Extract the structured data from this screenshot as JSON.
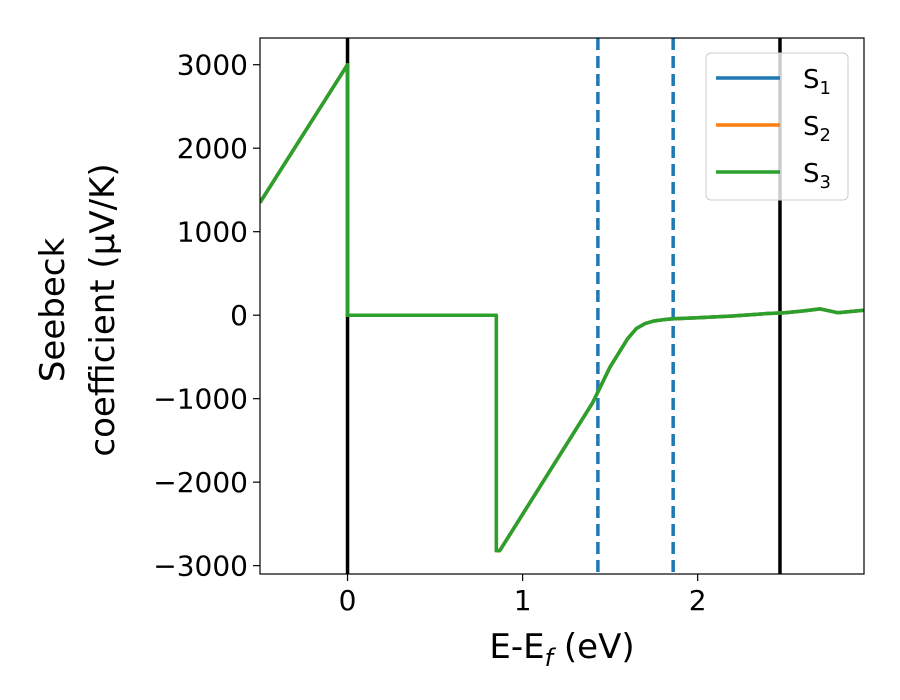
{
  "chart_data": {
    "type": "line",
    "xlabel": "E-E$_f$ (eV)",
    "xlabel_parts": {
      "base": "E-E",
      "sub": "f",
      "tail": " (eV)"
    },
    "ylabel_line1": "Seebeck",
    "ylabel_line2": "coefficient  (μV/K)",
    "xlim": [
      -0.5,
      2.95
    ],
    "ylim": [
      -3100,
      3320
    ],
    "x_ticks": [
      0,
      1,
      2
    ],
    "x_tick_labels": [
      "0",
      "1",
      "2"
    ],
    "y_ticks": [
      -3000,
      -2000,
      -1000,
      0,
      1000,
      2000,
      3000
    ],
    "y_tick_labels": [
      "−3000",
      "−2000",
      "−1000",
      "0",
      "1000",
      "2000",
      "3000"
    ],
    "grid": false,
    "legend_position": "top-right",
    "series": [
      {
        "name": "S1",
        "label_base": "S",
        "label_sub": "1",
        "color": "#1f77b4",
        "x": [
          -0.5,
          0.0,
          0.0,
          0.85,
          0.85,
          0.87,
          1.4,
          1.5,
          1.6,
          1.65,
          1.7,
          1.75,
          1.8,
          1.85,
          2.0,
          2.2,
          2.4,
          2.5,
          2.6,
          2.7,
          2.8,
          2.95
        ],
        "y": [
          1350,
          3000,
          0,
          0,
          -2820,
          -2820,
          -1050,
          -620,
          -280,
          -160,
          -100,
          -70,
          -55,
          -45,
          -30,
          -10,
          20,
          30,
          50,
          75,
          30,
          60
        ]
      },
      {
        "name": "S2",
        "label_base": "S",
        "label_sub": "2",
        "color": "#ff7f0e",
        "x": [
          -0.5,
          0.0,
          0.0,
          0.85,
          0.85,
          0.87,
          1.4,
          1.5,
          1.6,
          1.65,
          1.7,
          1.75,
          1.8,
          1.85,
          2.0,
          2.2,
          2.4,
          2.5,
          2.6,
          2.7,
          2.8,
          2.95
        ],
        "y": [
          1350,
          3000,
          0,
          0,
          -2820,
          -2820,
          -1050,
          -620,
          -280,
          -160,
          -100,
          -70,
          -55,
          -45,
          -30,
          -10,
          20,
          30,
          50,
          75,
          30,
          60
        ]
      },
      {
        "name": "S3",
        "label_base": "S",
        "label_sub": "3",
        "color": "#2ca02c",
        "x": [
          -0.5,
          0.0,
          0.0,
          0.85,
          0.85,
          0.87,
          1.4,
          1.5,
          1.6,
          1.65,
          1.7,
          1.75,
          1.8,
          1.85,
          2.0,
          2.2,
          2.4,
          2.5,
          2.6,
          2.7,
          2.8,
          2.95
        ],
        "y": [
          1350,
          3000,
          0,
          0,
          -2820,
          -2820,
          -1050,
          -620,
          -280,
          -160,
          -100,
          -70,
          -55,
          -45,
          -30,
          -10,
          20,
          30,
          50,
          75,
          30,
          60
        ]
      }
    ],
    "vertical_lines": [
      {
        "x": 0.0,
        "style": "solid",
        "color": "#000000"
      },
      {
        "x": 1.43,
        "style": "dashed",
        "color": "#1f77b4"
      },
      {
        "x": 1.86,
        "style": "dashed",
        "color": "#1f77b4"
      },
      {
        "x": 2.47,
        "style": "solid",
        "color": "#000000"
      }
    ]
  }
}
